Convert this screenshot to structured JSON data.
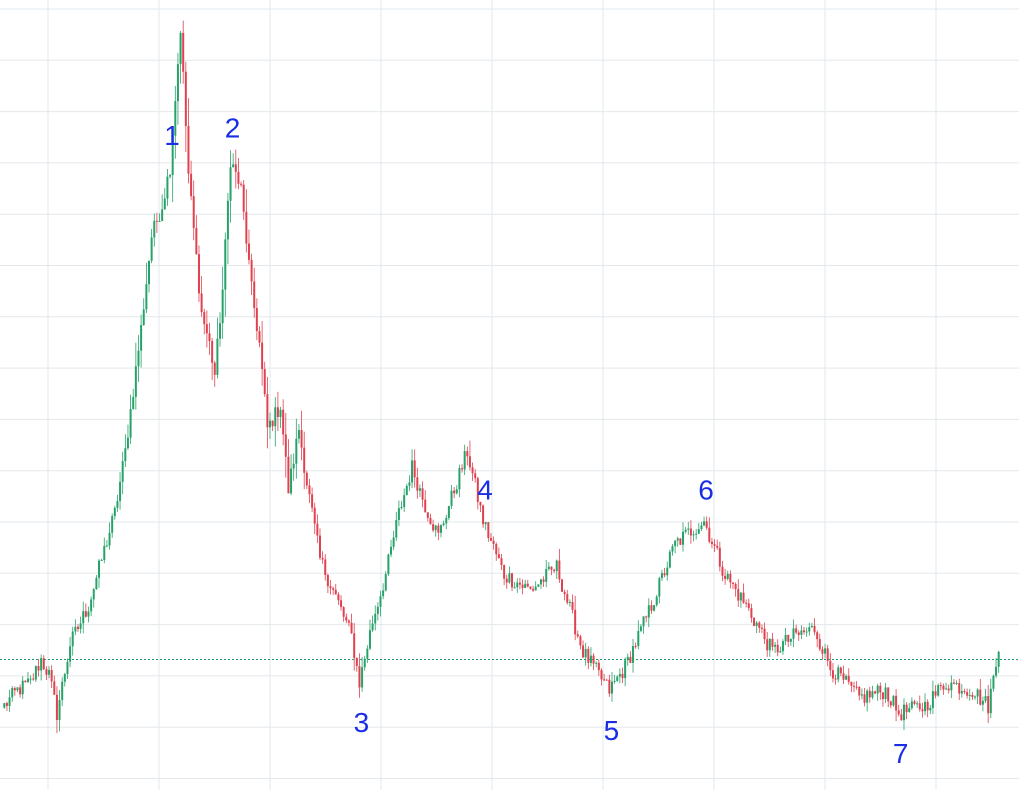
{
  "chart_data": {
    "type": "candlestick",
    "grid": true,
    "ylim": [
      0,
      100
    ],
    "reference_level": 15,
    "colors": {
      "up": "#26a269",
      "down": "#e0414e",
      "grid": "#e3e8ec",
      "reference_line": "#1e9e70",
      "label": "#1a2ee6"
    },
    "path": [
      [
        0,
        9
      ],
      [
        5,
        11
      ],
      [
        10,
        12
      ],
      [
        14,
        15
      ],
      [
        17,
        13
      ],
      [
        20,
        8
      ],
      [
        25,
        17
      ],
      [
        32,
        22
      ],
      [
        42,
        34
      ],
      [
        46,
        42
      ],
      [
        52,
        58
      ],
      [
        56,
        70
      ],
      [
        60,
        74
      ],
      [
        63,
        79
      ],
      [
        67,
        97
      ],
      [
        70,
        78
      ],
      [
        75,
        60
      ],
      [
        78,
        56
      ],
      [
        80,
        52
      ],
      [
        83,
        63
      ],
      [
        86,
        80
      ],
      [
        90,
        76
      ],
      [
        94,
        63
      ],
      [
        97,
        56
      ],
      [
        100,
        45
      ],
      [
        105,
        48
      ],
      [
        108,
        37
      ],
      [
        112,
        45
      ],
      [
        115,
        38
      ],
      [
        120,
        28
      ],
      [
        125,
        24
      ],
      [
        132,
        18
      ],
      [
        135,
        12
      ],
      [
        140,
        20
      ],
      [
        145,
        26
      ],
      [
        150,
        34
      ],
      [
        155,
        40
      ],
      [
        160,
        35
      ],
      [
        165,
        31
      ],
      [
        170,
        36
      ],
      [
        176,
        42
      ],
      [
        182,
        33
      ],
      [
        190,
        26
      ],
      [
        200,
        24
      ],
      [
        210,
        27
      ],
      [
        220,
        16
      ],
      [
        230,
        11
      ],
      [
        236,
        14
      ],
      [
        246,
        22
      ],
      [
        255,
        30
      ],
      [
        262,
        32
      ],
      [
        266,
        33
      ],
      [
        274,
        26
      ],
      [
        282,
        22
      ],
      [
        292,
        16
      ],
      [
        300,
        18
      ],
      [
        308,
        19
      ],
      [
        314,
        14
      ],
      [
        325,
        10
      ],
      [
        335,
        11
      ],
      [
        340,
        8
      ],
      [
        350,
        9
      ],
      [
        358,
        12
      ],
      [
        368,
        11
      ],
      [
        374,
        9
      ],
      [
        378,
        16
      ]
    ],
    "swing_points": [
      {
        "label": "1",
        "index": 63,
        "side": "high"
      },
      {
        "label": "2",
        "index": 86,
        "side": "high"
      },
      {
        "label": "3",
        "index": 135,
        "side": "low"
      },
      {
        "label": "4",
        "index": 182,
        "side": "high"
      },
      {
        "label": "5",
        "index": 230,
        "side": "low"
      },
      {
        "label": "6",
        "index": 266,
        "side": "high"
      },
      {
        "label": "7",
        "index": 340,
        "side": "low"
      }
    ]
  }
}
